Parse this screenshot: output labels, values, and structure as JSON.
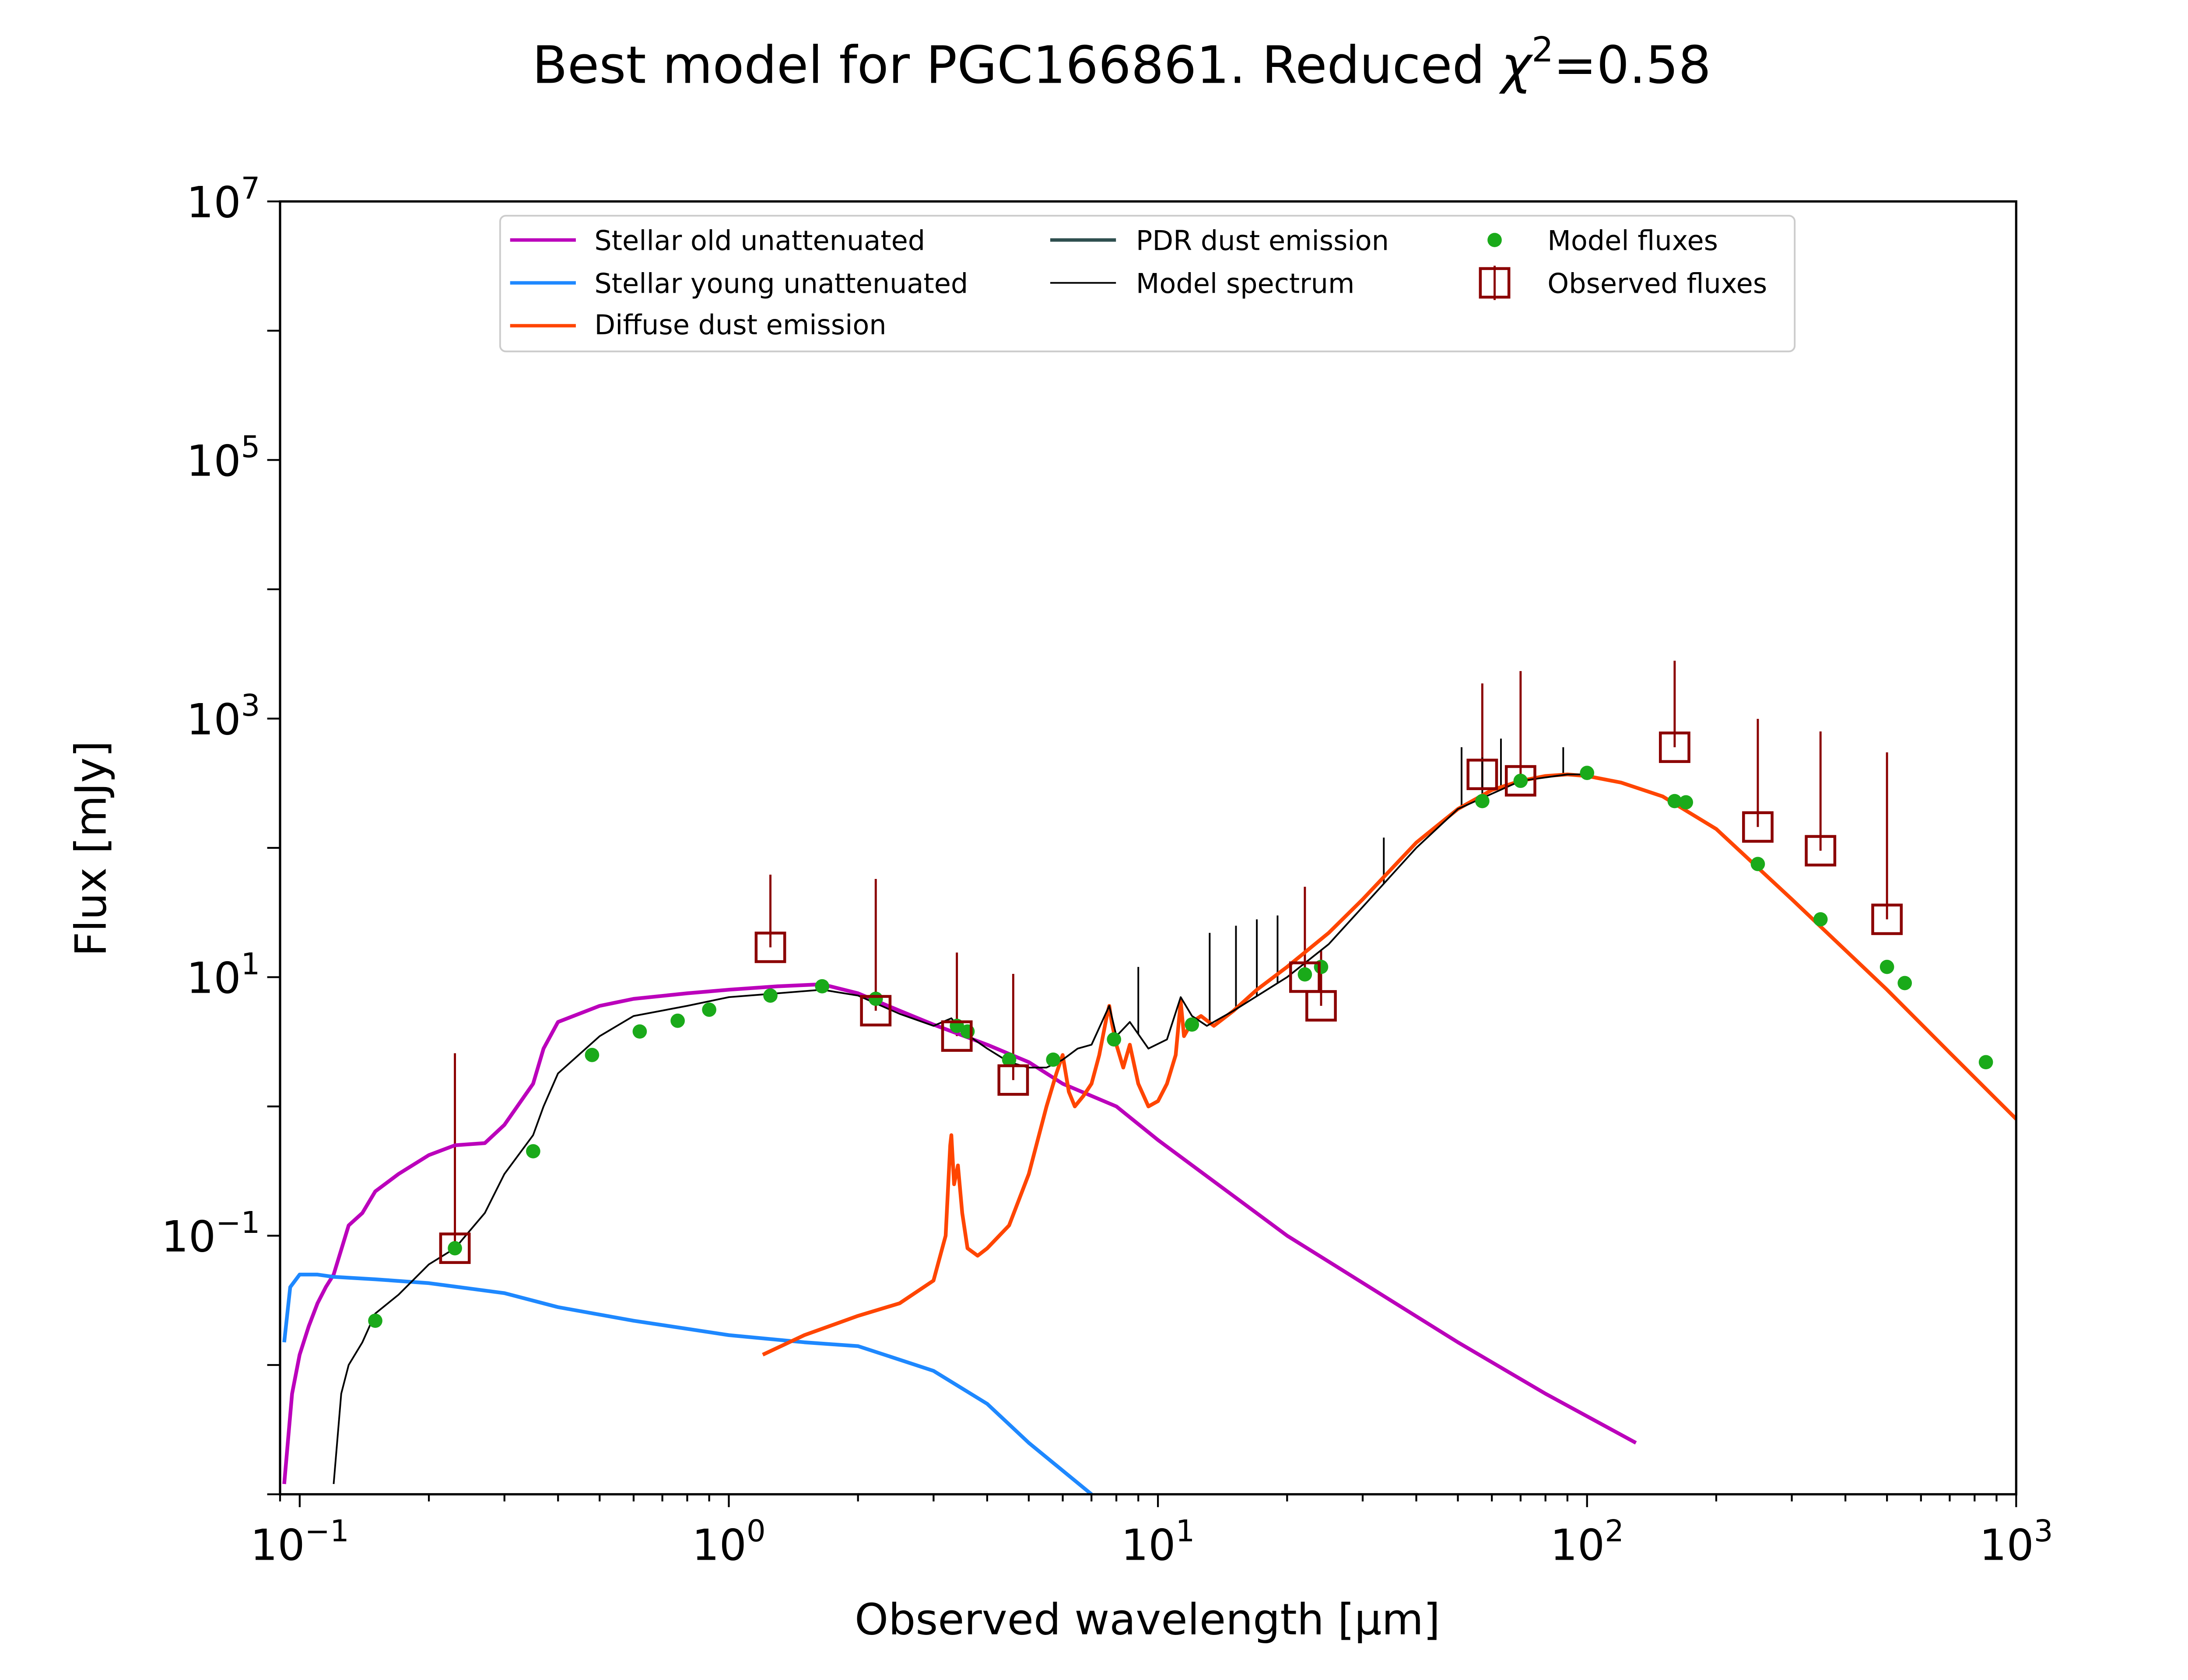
{
  "chart_data": {
    "type": "line",
    "title": "Best model for PGC166861. Reduced χ²=0.58",
    "title_parts": {
      "prefix": "Best model for PGC166861. Reduced ",
      "chi": "χ",
      "sup": "2",
      "suffix": "=0.58"
    },
    "xlabel": "Observed wavelength [μm]",
    "ylabel": "Flux [mJy]",
    "xscale": "log",
    "yscale": "log",
    "xlim": [
      0.09,
      1000
    ],
    "ylim": [
      0.001,
      10000000
    ],
    "xticks": [
      {
        "value": 0.1,
        "base": "10",
        "exp": "−1"
      },
      {
        "value": 1,
        "base": "10",
        "exp": "0"
      },
      {
        "value": 10,
        "base": "10",
        "exp": "1"
      },
      {
        "value": 100,
        "base": "10",
        "exp": "2"
      },
      {
        "value": 1000,
        "base": "10",
        "exp": "3"
      }
    ],
    "yticks": [
      {
        "value": 0.1,
        "base": "10",
        "exp": "−1"
      },
      {
        "value": 10,
        "base": "10",
        "exp": "1"
      },
      {
        "value": 1000,
        "base": "10",
        "exp": "3"
      },
      {
        "value": 100000,
        "base": "10",
        "exp": "5"
      },
      {
        "value": 10000000,
        "base": "10",
        "exp": "7"
      }
    ],
    "grid": false,
    "legend_position": "top-center",
    "legend": {
      "col1": [
        "Stellar old unattenuated",
        "Stellar young unattenuated",
        "Diffuse dust emission"
      ],
      "col2": [
        "PDR dust emission",
        "Model spectrum"
      ],
      "col3": [
        "Model fluxes",
        "Observed fluxes"
      ]
    },
    "colors": {
      "stellar_old": "#bb00bb",
      "stellar_young": "#1e88ff",
      "diffuse_dust": "#ff4500",
      "pdr_dust": "#2f4f4f",
      "model_spectrum": "#000000",
      "model_fluxes": "#1aaa1a",
      "observed": "#8b0000"
    },
    "series": [
      {
        "name": "Stellar old unattenuated",
        "x": [
          0.092,
          0.096,
          0.1,
          0.105,
          0.11,
          0.115,
          0.12,
          0.13,
          0.14,
          0.15,
          0.17,
          0.2,
          0.23,
          0.27,
          0.3,
          0.35,
          0.37,
          0.4,
          0.5,
          0.6,
          0.8,
          1.0,
          1.3,
          1.65,
          2.0,
          2.5,
          3.0,
          4.0,
          5.0,
          6.0,
          8.0,
          10.0,
          20.0,
          50.0,
          80.0,
          130.0
        ],
        "y": [
          0.0012,
          0.006,
          0.012,
          0.02,
          0.03,
          0.04,
          0.05,
          0.12,
          0.15,
          0.22,
          0.3,
          0.42,
          0.5,
          0.52,
          0.72,
          1.5,
          2.8,
          4.5,
          6.0,
          6.8,
          7.5,
          8.0,
          8.5,
          8.8,
          7.5,
          5.5,
          4.3,
          3.0,
          2.2,
          1.5,
          1.0,
          0.55,
          0.1,
          0.015,
          0.006,
          0.0025
        ]
      },
      {
        "name": "Stellar young unattenuated",
        "x": [
          0.092,
          0.095,
          0.1,
          0.11,
          0.12,
          0.15,
          0.2,
          0.3,
          0.4,
          0.6,
          1.0,
          1.5,
          2.0,
          2.5,
          3.0,
          4.0,
          5.0,
          7.0
        ],
        "y": [
          0.015,
          0.04,
          0.05,
          0.05,
          0.048,
          0.046,
          0.043,
          0.036,
          0.028,
          0.022,
          0.017,
          0.015,
          0.014,
          0.011,
          0.009,
          0.005,
          0.0025,
          0.001
        ]
      },
      {
        "name": "Diffuse dust emission",
        "x": [
          1.2,
          1.5,
          2.0,
          2.5,
          3.0,
          3.2,
          3.28,
          3.3,
          3.35,
          3.42,
          3.5,
          3.6,
          3.8,
          4.0,
          4.5,
          5.0,
          5.5,
          5.8,
          6.0,
          6.2,
          6.4,
          6.7,
          7.0,
          7.3,
          7.6,
          7.7,
          7.8,
          8.0,
          8.3,
          8.6,
          9.0,
          9.5,
          10.0,
          10.5,
          11.0,
          11.3,
          11.5,
          12.0,
          12.6,
          13.5,
          15.0,
          17.0,
          20.0,
          25.0,
          30.0,
          40.0,
          50.0,
          60.0,
          70.0,
          80.0,
          90.0,
          100.0,
          120.0,
          150.0,
          200.0,
          300.0,
          500.0,
          700.0,
          1000.0
        ],
        "y": [
          0.012,
          0.017,
          0.024,
          0.03,
          0.045,
          0.1,
          0.5,
          0.6,
          0.25,
          0.35,
          0.15,
          0.08,
          0.07,
          0.08,
          0.12,
          0.3,
          1.0,
          1.8,
          2.5,
          1.3,
          1.0,
          1.2,
          1.5,
          2.5,
          5.0,
          6.0,
          4.5,
          3.0,
          2.0,
          3.0,
          1.5,
          1.0,
          1.1,
          1.5,
          2.5,
          6.5,
          3.5,
          4.5,
          5.0,
          4.2,
          5.5,
          8.0,
          12.0,
          22.0,
          40.0,
          110.0,
          200.0,
          280.0,
          330.0,
          360.0,
          370.0,
          360.0,
          320.0,
          250.0,
          140.0,
          40.0,
          8.0,
          2.6,
          0.8
        ]
      },
      {
        "name": "Model spectrum",
        "x": [
          0.12,
          0.125,
          0.13,
          0.14,
          0.15,
          0.17,
          0.2,
          0.23,
          0.27,
          0.3,
          0.35,
          0.37,
          0.4,
          0.5,
          0.6,
          0.8,
          1.0,
          1.3,
          1.65,
          2.0,
          2.5,
          3.0,
          3.3,
          3.5,
          4.0,
          4.5,
          5.0,
          5.5,
          6.0,
          6.5,
          7.0,
          7.7,
          8.0,
          8.6,
          9.5,
          10.5,
          11.3,
          12.0,
          13.0,
          15.0,
          20.0,
          25.0,
          30.0,
          40.0,
          50.0,
          70.0,
          90.0,
          100.0
        ],
        "y": [
          0.0012,
          0.006,
          0.01,
          0.015,
          0.025,
          0.035,
          0.06,
          0.08,
          0.15,
          0.3,
          0.6,
          1.0,
          1.8,
          3.5,
          5.0,
          6.0,
          7.0,
          7.5,
          8.0,
          7.2,
          5.2,
          4.2,
          4.8,
          3.8,
          2.8,
          2.2,
          2.0,
          2.0,
          2.3,
          2.8,
          3.0,
          6.0,
          3.5,
          4.5,
          2.8,
          3.3,
          7.0,
          5.0,
          4.2,
          5.5,
          10.0,
          18.0,
          35.0,
          100.0,
          200.0,
          330.0,
          370.0,
          370.0
        ]
      }
    ],
    "spectral_lines": [
      {
        "x": 9.0,
        "y_top": 12.0
      },
      {
        "x": 13.2,
        "y_top": 22.0
      },
      {
        "x": 15.2,
        "y_top": 25.0
      },
      {
        "x": 17.0,
        "y_top": 28.0
      },
      {
        "x": 19.0,
        "y_top": 30.0
      },
      {
        "x": 33.6,
        "y_top": 120.0
      },
      {
        "x": 51.0,
        "y_top": 600.0
      },
      {
        "x": 57.0,
        "y_top": 500.0
      },
      {
        "x": 63.0,
        "y_top": 700.0
      },
      {
        "x": 88.0,
        "y_top": 600.0
      }
    ],
    "model_fluxes": {
      "x": [
        0.15,
        0.23,
        0.35,
        0.48,
        0.62,
        0.76,
        0.9,
        1.25,
        1.65,
        2.2,
        3.4,
        3.6,
        4.5,
        5.7,
        7.9,
        12.0,
        22.0,
        24.0,
        57.0,
        70.0,
        100.0,
        160.0,
        170.0,
        250.0,
        350.0,
        500.0,
        550.0,
        850.0
      ],
      "y": [
        0.022,
        0.08,
        0.45,
        2.5,
        3.8,
        4.6,
        5.6,
        7.2,
        8.5,
        6.8,
        4.2,
        3.8,
        2.3,
        2.3,
        3.3,
        4.3,
        10.5,
        12.0,
        230.0,
        330.0,
        380.0,
        230.0,
        225.0,
        75.0,
        28.0,
        12.0,
        9.0,
        2.2
      ]
    },
    "observed_fluxes": {
      "x": [
        0.23,
        1.25,
        2.2,
        3.4,
        4.6,
        22.0,
        24.0,
        57.0,
        70.0,
        160.0,
        250.0,
        350.0,
        500.0
      ],
      "y": [
        0.08,
        17.0,
        5.5,
        3.5,
        1.6,
        10.0,
        6.0,
        370.0,
        330.0,
        600.0,
        145.0,
        95.0,
        28.0
      ],
      "err_low": [
        0.001,
        0.001,
        0.001,
        0.001,
        0.001,
        0.001,
        0.001,
        90.0,
        0.001,
        0.001,
        0.001,
        0.001,
        0.001
      ],
      "err_high": [
        2.5,
        45.0,
        52.0,
        12.0,
        9.0,
        40.0,
        10.0,
        1500.0,
        2000.0,
        2200.0,
        850.0,
        700.0,
        520.0
      ]
    }
  }
}
